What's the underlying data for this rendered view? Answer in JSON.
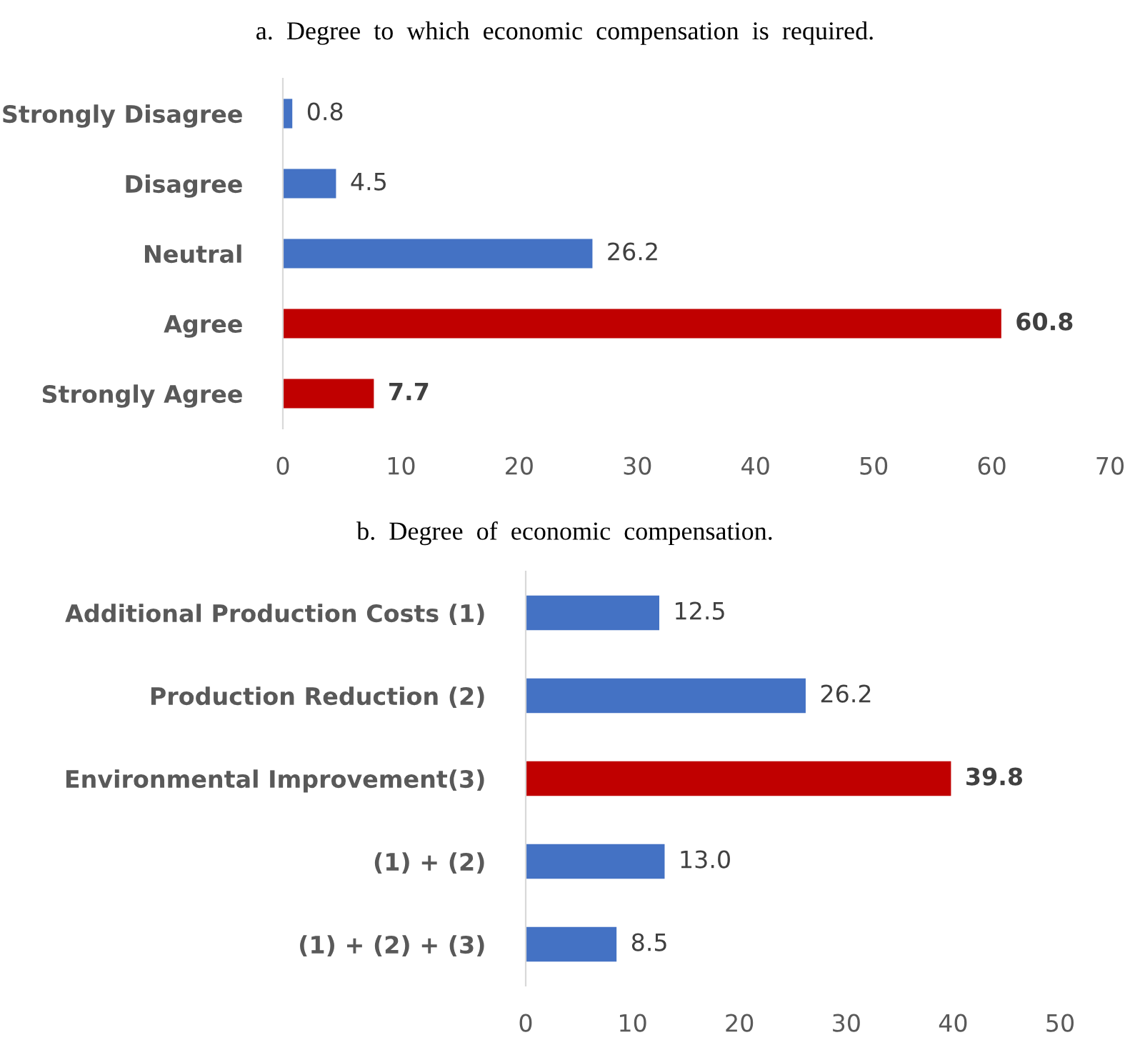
{
  "chart_data": [
    {
      "type": "bar",
      "orientation": "horizontal",
      "title": "a.  Degree  to  which  economic  compensation  is  required.",
      "categories": [
        "Strongly Disagree",
        "Disagree",
        "Neutral",
        "Agree",
        "Strongly Agree"
      ],
      "values": [
        0.8,
        4.5,
        26.2,
        60.8,
        7.7
      ],
      "colors": [
        "#4472c4",
        "#4472c4",
        "#4472c4",
        "#c00000",
        "#c00000"
      ],
      "value_labels": [
        "0.8",
        "4.5",
        "26.2",
        "60.8",
        "7.7"
      ],
      "xlim": [
        0,
        70
      ],
      "xticks": [
        0,
        10,
        20,
        30,
        40,
        50,
        60,
        70
      ],
      "grid": false
    },
    {
      "type": "bar",
      "orientation": "horizontal",
      "title": "b.  Degree  of  economic  compensation.",
      "categories": [
        "Additional Production Costs (1)",
        "Production Reduction (2)",
        "Environmental Improvement(3)",
        "(1) + (2)",
        "(1) + (2) + (3)"
      ],
      "values": [
        12.5,
        26.2,
        39.8,
        13.0,
        8.5
      ],
      "colors": [
        "#4472c4",
        "#4472c4",
        "#c00000",
        "#4472c4",
        "#4472c4"
      ],
      "value_labels": [
        "12.5",
        "26.2",
        "39.8",
        "13.0",
        "8.5"
      ],
      "xlim": [
        0,
        50
      ],
      "xticks": [
        0,
        10,
        20,
        30,
        40,
        50
      ],
      "grid": false
    }
  ]
}
